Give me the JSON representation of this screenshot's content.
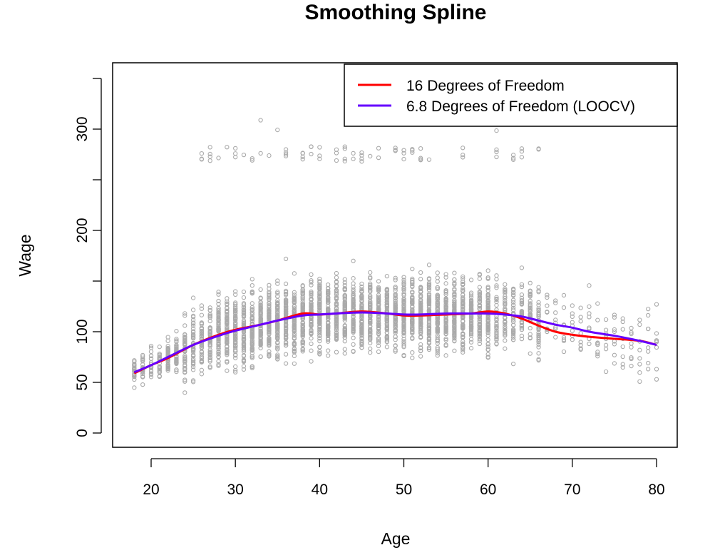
{
  "chart_data": {
    "type": "scatter",
    "title": "Smoothing Spline",
    "xlabel": "Age",
    "ylabel": "Wage",
    "xlim": [
      18,
      80
    ],
    "ylim": [
      0,
      350
    ],
    "x_ticks": [
      20,
      30,
      40,
      50,
      60,
      70,
      80
    ],
    "y_ticks": [
      0,
      50,
      100,
      150,
      200,
      250,
      300,
      350
    ],
    "y_tick_labels": {
      "0": "0",
      "50": "50",
      "100": "100",
      "200": "200",
      "300": "300"
    },
    "grid": false,
    "legend": {
      "placement": "top-right",
      "entries": [
        {
          "label": "16 Degrees of Freedom",
          "color": "#ff0000"
        },
        {
          "label": "6.8 Degrees of Freedom (LOOCV)",
          "color": "#6600ff"
        }
      ]
    },
    "points_color": "#aaaaaa",
    "series": [
      {
        "name": "16 Degrees of Freedom",
        "type": "line",
        "color": "#ff0000",
        "x": [
          18,
          20,
          22,
          25,
          28,
          30,
          33,
          35,
          38,
          40,
          42,
          45,
          48,
          50,
          52,
          55,
          58,
          60,
          62,
          64,
          66,
          68,
          70,
          72,
          75,
          78,
          80
        ],
        "y": [
          59,
          67,
          74,
          87,
          97,
          102,
          107,
          111,
          118,
          117,
          118,
          120,
          118,
          116,
          116,
          117,
          118,
          120,
          118,
          113,
          106,
          100,
          97,
          95,
          93,
          91,
          87
        ]
      },
      {
        "name": "6.8 Degrees of Freedom (LOOCV)",
        "type": "line",
        "color": "#6600ff",
        "x": [
          18,
          20,
          22,
          25,
          28,
          30,
          33,
          35,
          38,
          40,
          42,
          45,
          48,
          50,
          52,
          55,
          58,
          60,
          62,
          64,
          66,
          68,
          70,
          72,
          75,
          78,
          80
        ],
        "y": [
          60,
          67,
          75,
          87,
          96,
          101,
          107,
          111,
          116,
          117,
          118,
          119,
          118,
          117,
          117,
          118,
          118,
          118,
          117,
          115,
          111,
          107,
          104,
          100,
          96,
          91,
          87
        ]
      }
    ]
  }
}
